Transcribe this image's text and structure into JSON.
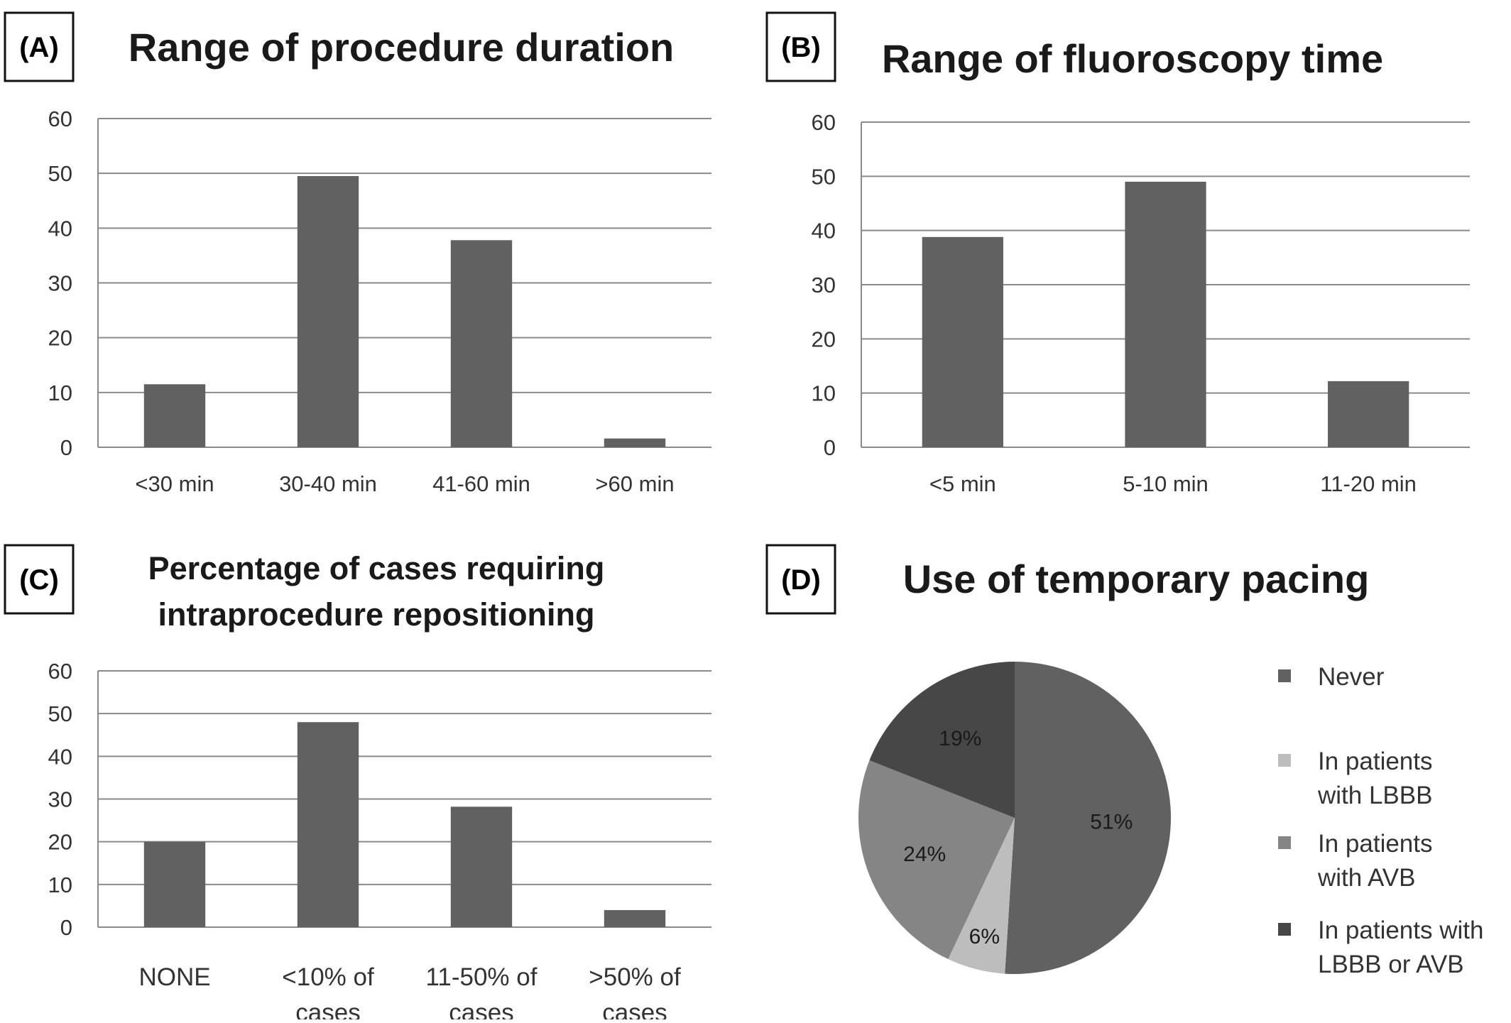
{
  "colors": {
    "bar": "#616161",
    "pie_never": "#616161",
    "pie_lbbb": "#bdbdbd",
    "pie_avb": "#858585",
    "pie_lbbb_or_avb": "#474747"
  },
  "chart_data": [
    {
      "panel": "(A)",
      "type": "bar",
      "title": "Range of procedure duration",
      "categories": [
        "<30 min",
        "30-40 min",
        "41-60 min",
        ">60 min"
      ],
      "values": [
        11.5,
        49.5,
        37.8,
        1.6
      ],
      "ylim": [
        0,
        60
      ],
      "yticks": [
        0,
        10,
        20,
        30,
        40,
        50,
        60
      ],
      "grid": true,
      "xlabel": "",
      "ylabel": ""
    },
    {
      "panel": "(B)",
      "type": "bar",
      "title": "Range of fluoroscopy time",
      "categories": [
        "<5 min",
        "5-10 min",
        "11-20 min"
      ],
      "values": [
        38.8,
        49.0,
        12.2
      ],
      "ylim": [
        0,
        60
      ],
      "yticks": [
        0,
        10,
        20,
        30,
        40,
        50,
        60
      ],
      "grid": true,
      "xlabel": "",
      "ylabel": ""
    },
    {
      "panel": "(C)",
      "type": "bar",
      "title": [
        "Percentage of cases requiring",
        "intraprocedure repositioning"
      ],
      "categories": [
        [
          "NONE"
        ],
        [
          "<10% of",
          "cases"
        ],
        [
          "11-50% of",
          "cases"
        ],
        [
          ">50% of",
          "cases"
        ]
      ],
      "values": [
        20.0,
        48.0,
        28.2,
        4.0
      ],
      "ylim": [
        0,
        60
      ],
      "yticks": [
        0,
        10,
        20,
        30,
        40,
        50,
        60
      ],
      "grid": true,
      "xlabel": "",
      "ylabel": ""
    },
    {
      "panel": "(D)",
      "type": "pie",
      "title": "Use of temporary pacing",
      "slices": [
        {
          "label": [
            "Never"
          ],
          "value": 51,
          "text": "51%"
        },
        {
          "label": [
            "In patients",
            "with LBBB"
          ],
          "value": 6,
          "text": "6%"
        },
        {
          "label": [
            "In patients",
            "with AVB"
          ],
          "value": 24,
          "text": "24%"
        },
        {
          "label": [
            "In patients with",
            "LBBB or AVB"
          ],
          "value": 19,
          "text": "19%"
        }
      ],
      "legend": "right"
    }
  ]
}
